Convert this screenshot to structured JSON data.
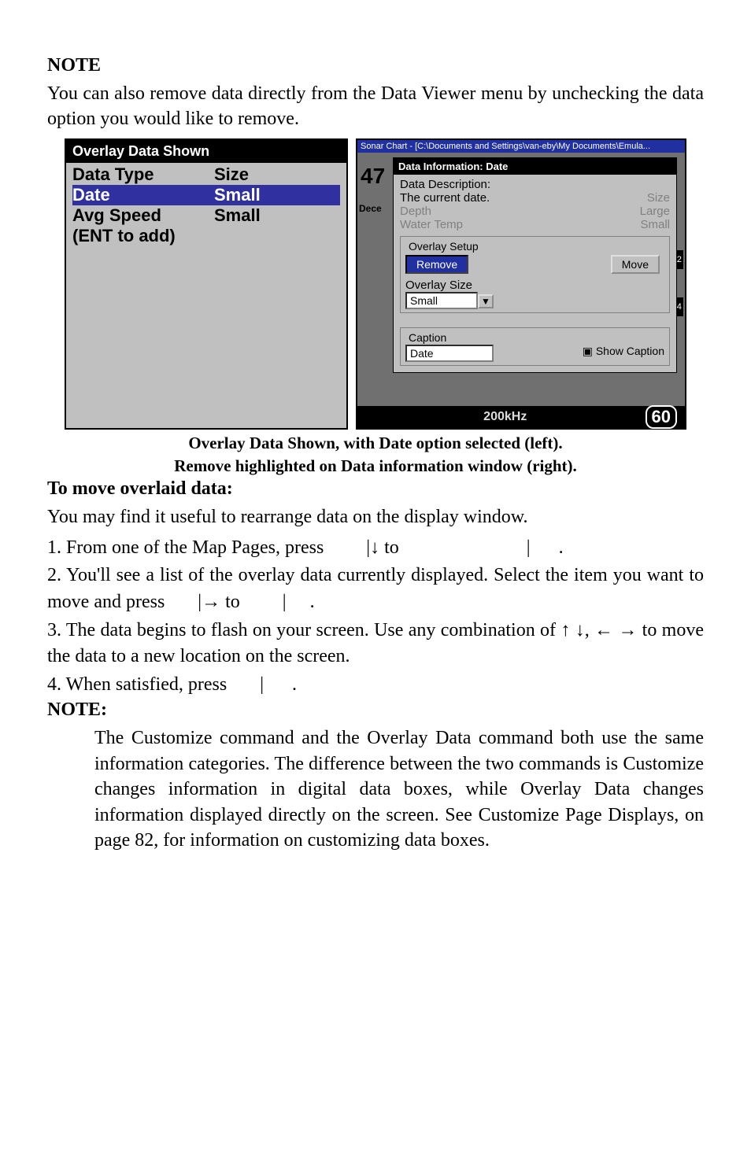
{
  "note_heading": "NOTE",
  "note_heading2": "NOTE:",
  "p_intro": "You can also remove data directly from the Data Viewer menu by unchecking the data option you would like to remove.",
  "left_panel": {
    "title": "Overlay Data Shown",
    "rows": [
      {
        "c1": "Data Type",
        "c2": "Size",
        "sel": false
      },
      {
        "c1": "Date",
        "c2": "Small",
        "sel": true
      },
      {
        "c1": "Avg Speed",
        "c2": "Small",
        "sel": false
      },
      {
        "c1": "(ENT to add)",
        "c2": "",
        "sel": false
      }
    ]
  },
  "right_panel": {
    "top_mini": "Sonar Chart - [C:\\Documents and Settings\\van-eby\\My Documents\\Emula...",
    "left_num": "47",
    "left_dec": "Dece",
    "dlg_title": "Data Information: Date",
    "desc_label": "Data Description:",
    "desc_line": "The current date.",
    "dim_rows": [
      {
        "l": "Depth",
        "r": "Size"
      },
      {
        "l": "Water Temp",
        "r": "Large"
      },
      {
        "l": "",
        "r": "Small"
      }
    ],
    "group_label": "Overlay Setup",
    "btn_remove": "Remove",
    "btn_move": "Move",
    "size_label": "Overlay Size",
    "size_value": "Small",
    "caption_label": "Caption",
    "caption_value": "Date",
    "show_caption": "Show Caption",
    "khz": "200kHz",
    "sixty": "60",
    "pill1": "x2",
    "pill2": "x4"
  },
  "fig_caption1": "Overlay Data Shown, with Date option selected (left).",
  "fig_caption2": "Remove highlighted on Data information window (right).",
  "h_move": "To move overlaid data:",
  "p_move": "You may find it useful to rearrange data on the display window.",
  "step1a": "1. From one of the Map Pages, press ",
  "step1b": "|↓ to ",
  "step1c": "|",
  "step1d": ".",
  "step2a": "2. You'll see a list of the overlay data currently displayed. Select the item you want to move and press ",
  "step2b": "|→ to ",
  "step2c": "|",
  "step2d": ".",
  "step3": "3. The data begins to flash on your screen. Use any combination of ↑ ↓, ← → to move the data to a new location on the screen.",
  "step4a": "4. When satisfied, press ",
  "step4b": "|",
  "step4c": ".",
  "note2": "The Customize command and the Overlay Data command both use the same information categories. The difference between the two commands is Customize changes information in digital data boxes, while Overlay Data changes information displayed directly on the screen. See Customize Page Displays, on page 82, for information on customizing data boxes."
}
